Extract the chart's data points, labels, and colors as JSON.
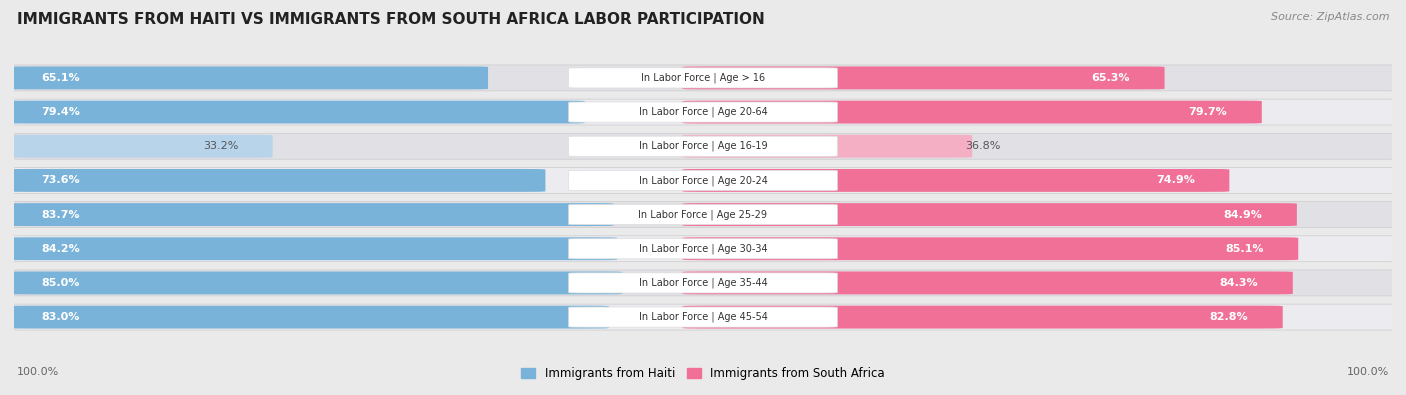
{
  "title": "IMMIGRANTS FROM HAITI VS IMMIGRANTS FROM SOUTH AFRICA LABOR PARTICIPATION",
  "source": "Source: ZipAtlas.com",
  "categories": [
    "In Labor Force | Age > 16",
    "In Labor Force | Age 20-64",
    "In Labor Force | Age 16-19",
    "In Labor Force | Age 20-24",
    "In Labor Force | Age 25-29",
    "In Labor Force | Age 30-34",
    "In Labor Force | Age 35-44",
    "In Labor Force | Age 45-54"
  ],
  "haiti_values": [
    65.1,
    79.4,
    33.2,
    73.6,
    83.7,
    84.2,
    85.0,
    83.0
  ],
  "sa_values": [
    65.3,
    79.7,
    36.8,
    74.9,
    84.9,
    85.1,
    84.3,
    82.8
  ],
  "haiti_color": "#7ab3d9",
  "sa_color": "#f07098",
  "haiti_color_light": "#b8d4eb",
  "sa_color_light": "#f4afc5",
  "background_color": "#eaeaea",
  "row_bg_color": "#e0e0e5",
  "row_bg_light": "#ebebf0",
  "max_value": 100.0,
  "legend_haiti": "Immigrants from Haiti",
  "legend_sa": "Immigrants from South Africa",
  "title_fontsize": 11,
  "value_fontsize": 8,
  "cat_fontsize": 7,
  "footer_fontsize": 8,
  "source_fontsize": 8
}
